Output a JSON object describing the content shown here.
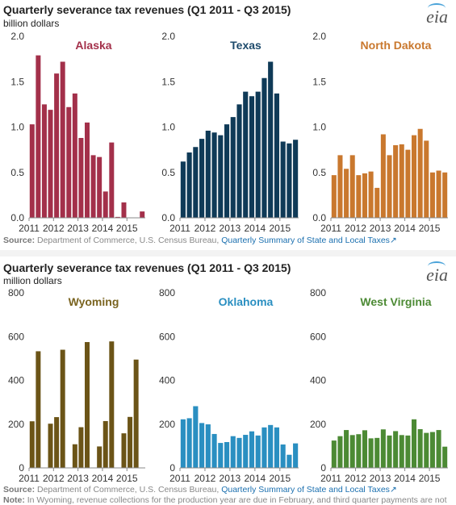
{
  "top": {
    "title": "Quarterly severance tax revenues (Q1 2011 - Q3 2015)",
    "unit": "billion dollars",
    "logo": "eia",
    "source_prefix": "Source:",
    "source_text": " Department of Commerce, U.S. Census Bureau, ",
    "source_link": "Quarterly Summary of State and Local Taxes"
  },
  "bottom": {
    "title": "Quarterly severance tax revenues (Q1 2011 - Q3 2015)",
    "unit": "million dollars",
    "logo": "eia",
    "source_prefix": "Source:",
    "source_text": " Department of Commerce, U.S. Census Bureau, ",
    "source_link": "Quarterly Summary of State and Local Taxes",
    "note_prefix": "Note:",
    "note_text": " In Wyoming, revenue collections for the production year are due in February, and third quarter payments are not"
  },
  "chart_data": [
    {
      "type": "bar",
      "title": "Alaska",
      "color": "#a3304a",
      "title_color": "#a3304a",
      "ylim": [
        0,
        2.0
      ],
      "yticks": [
        "0.0",
        "0.5",
        "1.0",
        "1.5",
        "2.0"
      ],
      "xticks": [
        "2011",
        "2012",
        "2013",
        "2014",
        "2015"
      ],
      "values": [
        1.03,
        1.79,
        1.25,
        1.19,
        1.59,
        1.72,
        1.22,
        1.37,
        0.88,
        1.05,
        0.69,
        0.67,
        0.29,
        0.83,
        0.01,
        0.17,
        0.0,
        0.0,
        0.07
      ]
    },
    {
      "type": "bar",
      "title": "Texas",
      "color": "#0f3a57",
      "title_color": "#1d4a6b",
      "ylim": [
        0,
        2.0
      ],
      "yticks": [
        "0.0",
        "0.5",
        "1.0",
        "1.5",
        "2.0"
      ],
      "xticks": [
        "2011",
        "2012",
        "2013",
        "2014",
        "2015"
      ],
      "values": [
        0.62,
        0.72,
        0.78,
        0.87,
        0.96,
        0.94,
        0.91,
        1.03,
        1.11,
        1.25,
        1.39,
        1.34,
        1.39,
        1.54,
        1.72,
        1.37,
        0.84,
        0.82,
        0.86
      ]
    },
    {
      "type": "bar",
      "title": "North Dakota",
      "color": "#c9782e",
      "title_color": "#c9782e",
      "ylim": [
        0,
        2.0
      ],
      "yticks": [
        "0.0",
        "0.5",
        "1.0",
        "1.5",
        "2.0"
      ],
      "xticks": [
        "2011",
        "2012",
        "2013",
        "2014",
        "2015"
      ],
      "values": [
        0.47,
        0.69,
        0.54,
        0.69,
        0.47,
        0.49,
        0.51,
        0.33,
        0.92,
        0.69,
        0.8,
        0.81,
        0.75,
        0.91,
        0.98,
        0.85,
        0.5,
        0.52,
        0.5
      ]
    },
    {
      "type": "bar",
      "title": "Wyoming",
      "color": "#6b5417",
      "title_color": "#7a6420",
      "ylim": [
        0,
        800
      ],
      "yticks": [
        "0",
        "200",
        "400",
        "600",
        "800"
      ],
      "xticks": [
        "2011",
        "2012",
        "2013",
        "2014",
        "2015"
      ],
      "values": [
        213,
        533,
        0,
        202,
        232,
        540,
        0,
        108,
        186,
        575,
        0,
        98,
        214,
        578,
        0,
        158,
        233,
        495,
        0
      ]
    },
    {
      "type": "bar",
      "title": "Oklahoma",
      "color": "#2a8fc1",
      "title_color": "#2a8fc1",
      "ylim": [
        0,
        800
      ],
      "yticks": [
        "0",
        "200",
        "400",
        "600",
        "800"
      ],
      "xticks": [
        "2011",
        "2012",
        "2013",
        "2014",
        "2015"
      ],
      "values": [
        222,
        227,
        282,
        205,
        199,
        155,
        114,
        118,
        145,
        137,
        151,
        167,
        148,
        185,
        196,
        185,
        107,
        60,
        112
      ]
    },
    {
      "type": "bar",
      "title": "West Virginia",
      "color": "#4c8a34",
      "title_color": "#4c8a34",
      "ylim": [
        0,
        800
      ],
      "yticks": [
        "0",
        "200",
        "400",
        "600",
        "800"
      ],
      "xticks": [
        "2011",
        "2012",
        "2013",
        "2014",
        "2015"
      ],
      "values": [
        125,
        145,
        173,
        150,
        154,
        172,
        135,
        137,
        176,
        148,
        168,
        150,
        148,
        222,
        177,
        160,
        164,
        173,
        97
      ]
    }
  ]
}
